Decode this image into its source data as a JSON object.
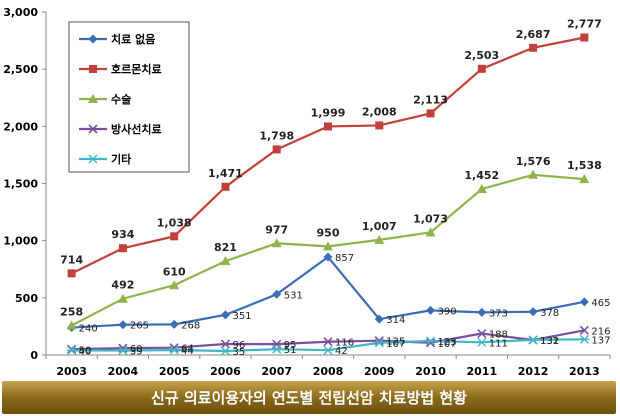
{
  "caption": "신규 의료이용자의 연도별 전립선암 치료방법 현황",
  "chart_data": {
    "type": "line",
    "categories": [
      "2003",
      "2004",
      "2005",
      "2006",
      "2007",
      "2008",
      "2009",
      "2010",
      "2011",
      "2012",
      "2013"
    ],
    "ylim": [
      0,
      3000
    ],
    "yticks": [
      0,
      500,
      1000,
      1500,
      2000,
      2500,
      3000
    ],
    "ytick_labels": [
      "0",
      "500",
      "1,000",
      "1,500",
      "2,000",
      "2,500",
      "3,000"
    ],
    "grid": false,
    "legend_position": "top-left",
    "series": [
      {
        "name": "치료 없음",
        "color": "#3a6db3",
        "marker": "diamond",
        "values": [
          240,
          265,
          268,
          351,
          531,
          857,
          314,
          390,
          373,
          378,
          465
        ],
        "labels": [
          "240",
          "265",
          "268",
          "351",
          "531",
          "857",
          "314",
          "390",
          "373",
          "378",
          "465"
        ]
      },
      {
        "name": "호르몬치료",
        "color": "#c0413a",
        "marker": "square",
        "values": [
          714,
          934,
          1038,
          1471,
          1798,
          1999,
          2008,
          2113,
          2503,
          2687,
          2777
        ],
        "labels": [
          "714",
          "934",
          "1,038",
          "1,471",
          "1,798",
          "1,999",
          "2,008",
          "2,113",
          "2,503",
          "2,687",
          "2,777"
        ]
      },
      {
        "name": "수술",
        "color": "#8fb34a",
        "marker": "triangle",
        "values": [
          258,
          492,
          610,
          821,
          977,
          950,
          1007,
          1073,
          1452,
          1576,
          1538
        ],
        "labels": [
          "258",
          "492",
          "610",
          "821",
          "977",
          "950",
          "1,007",
          "1,073",
          "1,452",
          "1,576",
          "1,538"
        ]
      },
      {
        "name": "방사선치료",
        "color": "#7b4f9e",
        "marker": "x",
        "values": [
          50,
          60,
          64,
          96,
          95,
          116,
          125,
          107,
          188,
          131,
          216
        ],
        "labels": [
          "50",
          "60",
          "64",
          "96",
          "95",
          "116",
          "125",
          "107",
          "188",
          "131",
          "216"
        ]
      },
      {
        "name": "기타",
        "color": "#3fb6c8",
        "marker": "asterisk",
        "values": [
          40,
          39,
          44,
          35,
          51,
          42,
          107,
          123,
          111,
          132,
          137
        ],
        "labels": [
          "40",
          "39",
          "44",
          "35",
          "51",
          "42",
          "107",
          "123",
          "111",
          "132",
          "137"
        ]
      }
    ]
  }
}
